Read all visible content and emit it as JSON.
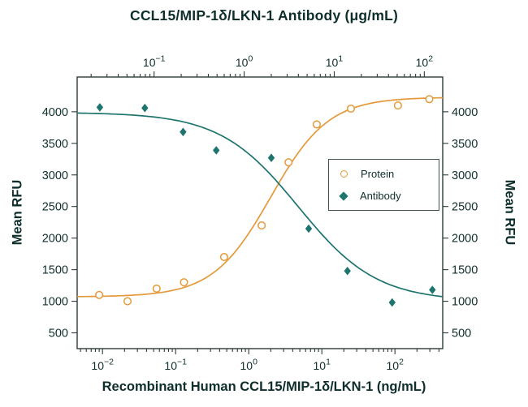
{
  "header": {
    "title": "CCL15/MIP-1δ/LKN-1 Antibody (μg/mL)"
  },
  "axes": {
    "left_label": "Mean RFU",
    "right_label": "Mean RFU",
    "bottom_label": "Recombinant Human CCL15/MIP-1δ/LKN-1 (ng/mL)"
  },
  "legend": {
    "items": [
      {
        "label": "Protein",
        "marker": "open-circle"
      },
      {
        "label": "Antibody",
        "marker": "filled-diamond"
      }
    ]
  },
  "colors": {
    "protein": "#E49A3A",
    "antibody": "#1E756E",
    "axis": "#2d3b39",
    "text": "#0e2e2c"
  },
  "chart_data": {
    "type": "scatter",
    "title": "CCL15/MIP-1δ/LKN-1 Antibody (μg/mL)",
    "grid": false,
    "legend_position": "middle-right",
    "x_axis_bottom": {
      "label": "Recombinant Human CCL15/MIP-1δ/LKN-1 (ng/mL)",
      "scale": "log",
      "lim": [
        0.0045,
        450
      ],
      "tick_exponents": [
        -2,
        -1,
        0,
        1,
        2
      ],
      "units": "ng/mL"
    },
    "x_axis_top": {
      "label": "CCL15/MIP-1δ/LKN-1 Antibody (μg/mL)",
      "scale": "log",
      "lim": [
        0.014,
        160
      ],
      "tick_exponents": [
        -1,
        0,
        1,
        2
      ],
      "units": "μg/mL"
    },
    "y_axis": {
      "label": "Mean RFU",
      "scale": "linear",
      "lim": [
        250,
        4550
      ],
      "ticks": [
        500,
        1000,
        1500,
        2000,
        2500,
        3000,
        3500,
        4000
      ]
    },
    "series": [
      {
        "name": "Protein",
        "marker": "open-circle",
        "color": "#E49A3A",
        "x_axis": "bottom",
        "units": "ng/mL",
        "points": [
          [
            0.009,
            1100
          ],
          [
            0.022,
            1000
          ],
          [
            0.055,
            1200
          ],
          [
            0.13,
            1300
          ],
          [
            0.46,
            1700
          ],
          [
            1.5,
            2200
          ],
          [
            3.5,
            3200
          ],
          [
            8.5,
            3800
          ],
          [
            25,
            4050
          ],
          [
            110,
            4100
          ],
          [
            295,
            4200
          ]
        ],
        "fit_4pl": {
          "y_at_low_x": 1070,
          "y_at_high_x": 4230,
          "ec50": 2.0,
          "hill": 1.1
        }
      },
      {
        "name": "Antibody",
        "marker": "filled-diamond",
        "color": "#1E756E",
        "x_axis": "top",
        "units": "μg/mL",
        "points": [
          [
            0.025,
            4070
          ],
          [
            0.079,
            4060
          ],
          [
            0.21,
            3680
          ],
          [
            0.49,
            3390
          ],
          [
            2.0,
            3270
          ],
          [
            5.2,
            2150
          ],
          [
            14,
            1480
          ],
          [
            44,
            980
          ],
          [
            123,
            1180
          ]
        ],
        "fit_4pl": {
          "y_at_low_x": 3990,
          "y_at_high_x": 1000,
          "ec50": 4.0,
          "hill": 1.0
        }
      }
    ]
  }
}
